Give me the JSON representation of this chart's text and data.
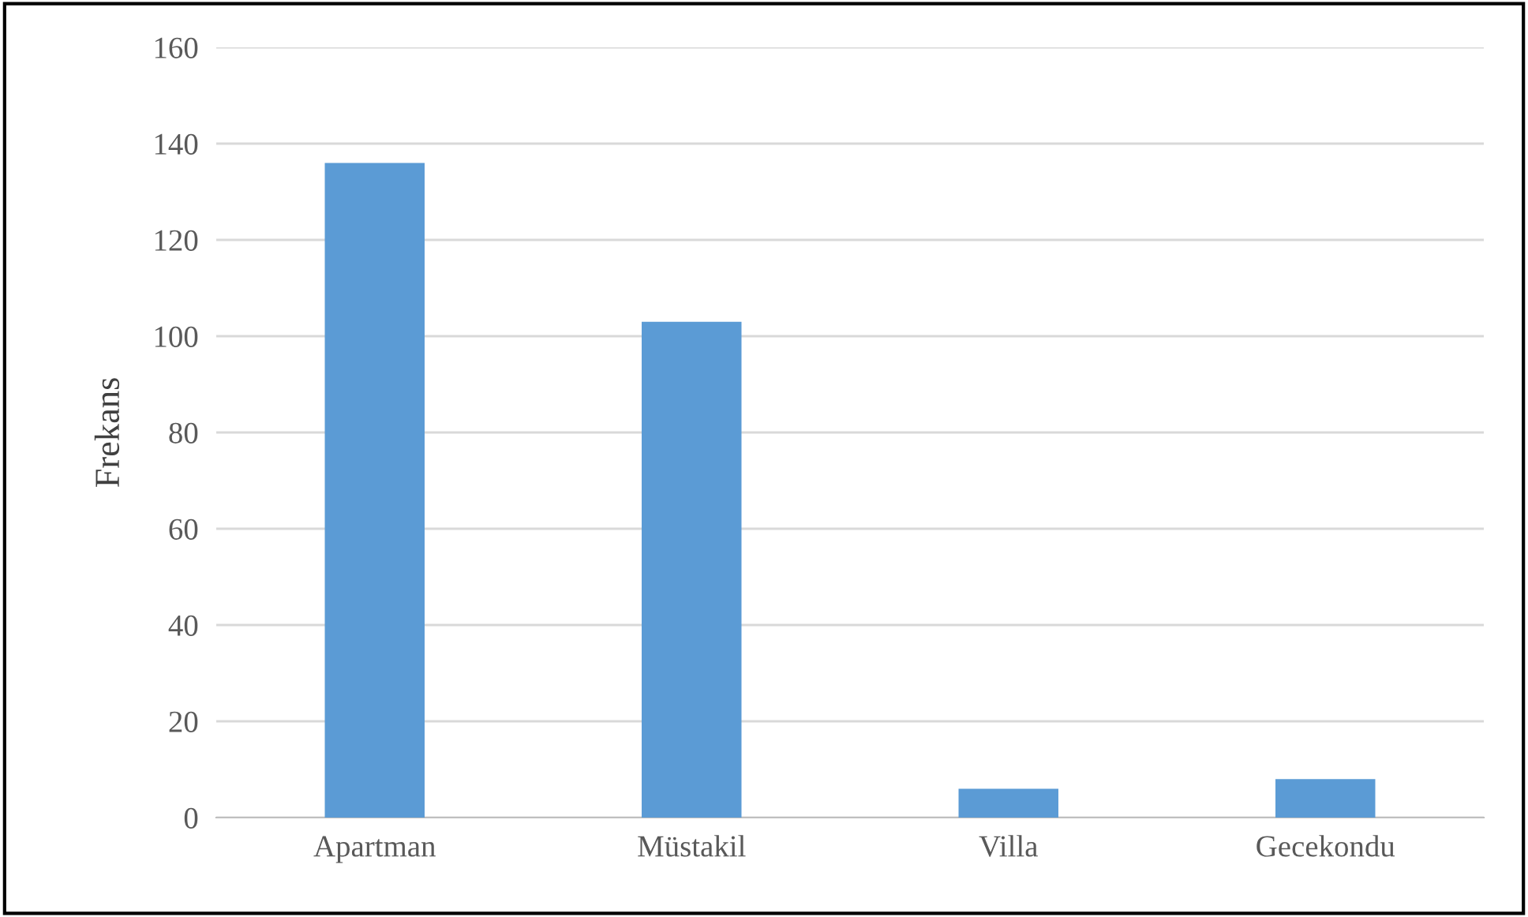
{
  "chart_data": {
    "type": "bar",
    "ylabel": "Frekans",
    "categories": [
      "Apartman",
      "Müstakil",
      "Villa",
      "Gecekondu"
    ],
    "values": [
      136,
      103,
      6,
      8
    ],
    "color": "#5b9bd5",
    "ylim": [
      0,
      160
    ],
    "yticks": [
      0,
      20,
      40,
      60,
      80,
      100,
      120,
      140,
      160
    ],
    "grid": "y",
    "legend": false
  }
}
